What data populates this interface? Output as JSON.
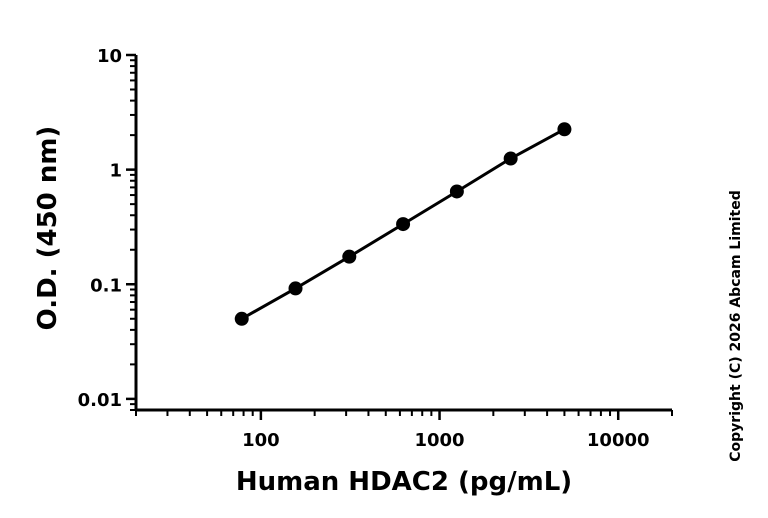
{
  "chart_data": {
    "type": "scatter",
    "xlabel": "Human HDAC2 (pg/mL)",
    "ylabel": "O.D. (450 nm)",
    "x_scale": "log",
    "y_scale": "log",
    "xlim": [
      20,
      20000
    ],
    "ylim": [
      0.008,
      10
    ],
    "x_ticks": [
      {
        "value": 100,
        "label": "100"
      },
      {
        "value": 1000,
        "label": "1000"
      },
      {
        "value": 10000,
        "label": "10000"
      }
    ],
    "y_ticks": [
      {
        "value": 10,
        "label": "10"
      },
      {
        "value": 1,
        "label": "1"
      },
      {
        "value": 0.1,
        "label": "0.1"
      },
      {
        "value": 0.01,
        "label": "0.01"
      }
    ],
    "series": [
      {
        "x": [
          78.125,
          156.25,
          312.5,
          625,
          1250,
          2500,
          5000
        ],
        "y": [
          0.05,
          0.092,
          0.174,
          0.335,
          0.645,
          1.25,
          2.25
        ]
      }
    ],
    "fit_line": true,
    "grid": false
  },
  "copyright": "Copyright (C) 2026 Abcam Limited"
}
